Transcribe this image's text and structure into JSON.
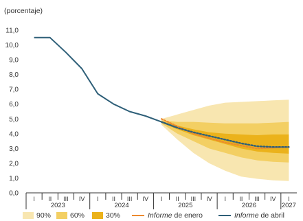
{
  "chart_data": {
    "type": "line",
    "ylabel": "(porcentaje)",
    "ylim": [
      0,
      11
    ],
    "yticks": [
      "0,0",
      "1,0",
      "2,0",
      "3,0",
      "4,0",
      "5,0",
      "6,0",
      "7,0",
      "8,0",
      "9,0",
      "10,0",
      "11,0"
    ],
    "quarters": [
      "I",
      "II",
      "III",
      "IV",
      "I",
      "II",
      "III",
      "IV",
      "I",
      "II",
      "III",
      "IV",
      "I",
      "II",
      "III",
      "IV",
      "I"
    ],
    "years": [
      "2023",
      "2024",
      "2025",
      "2026",
      "2027"
    ],
    "series": [
      {
        "name": "Informe de abril",
        "color": "#2e5f78",
        "x": [
          0,
          1,
          2,
          3,
          4,
          5,
          6,
          7,
          8,
          9
        ],
        "y": [
          10.5,
          10.5,
          9.5,
          8.4,
          6.7,
          6.0,
          5.5,
          5.2,
          4.8,
          4.4
        ],
        "projection_x": [
          8,
          9,
          10,
          11,
          12,
          13,
          14,
          15,
          16
        ],
        "projection_y": [
          4.8,
          4.4,
          4.1,
          3.85,
          3.6,
          3.35,
          3.15,
          3.1,
          3.1
        ]
      },
      {
        "name": "Informe de enero",
        "color": "#ec8a2e",
        "x": [
          8,
          9,
          10,
          11,
          12,
          13,
          14,
          15,
          16
        ],
        "y": [
          5.0,
          4.5,
          4.0,
          3.7,
          3.4,
          3.2,
          3.0,
          3.05,
          3.1
        ]
      }
    ],
    "fan": {
      "x": [
        8,
        9,
        10,
        11,
        12,
        13,
        14,
        15,
        16
      ],
      "bands": [
        {
          "name": "90%",
          "color": "#f8e6b0",
          "upper": [
            5.0,
            5.3,
            5.6,
            5.9,
            6.1,
            6.15,
            6.2,
            6.25,
            6.3
          ],
          "lower": [
            4.6,
            3.6,
            2.7,
            2.0,
            1.5,
            1.1,
            0.95,
            0.85,
            0.8
          ]
        },
        {
          "name": "60%",
          "color": "#f3cf63",
          "upper": [
            4.9,
            4.8,
            4.8,
            4.75,
            4.7,
            4.7,
            4.7,
            4.75,
            4.8
          ],
          "lower": [
            4.7,
            4.0,
            3.5,
            3.0,
            2.7,
            2.4,
            2.2,
            2.1,
            2.05
          ]
        },
        {
          "name": "30%",
          "color": "#ebb21b",
          "upper": [
            4.85,
            4.55,
            4.3,
            4.1,
            4.0,
            3.95,
            3.9,
            3.95,
            3.95
          ],
          "lower": [
            4.75,
            4.3,
            3.9,
            3.6,
            3.3,
            3.0,
            2.8,
            2.7,
            2.65
          ]
        }
      ]
    },
    "legend": [
      {
        "label": "90%",
        "color": "#f8e6b0"
      },
      {
        "label": "60%",
        "color": "#f3cf63"
      },
      {
        "label": "30%",
        "color": "#ebb21b"
      }
    ],
    "legend_lines": [
      {
        "italic": "Informe",
        "rest": " de enero",
        "color": "#ec8a2e"
      },
      {
        "italic": "Informe",
        "rest": " de abril",
        "color": "#2e5f78"
      }
    ]
  }
}
